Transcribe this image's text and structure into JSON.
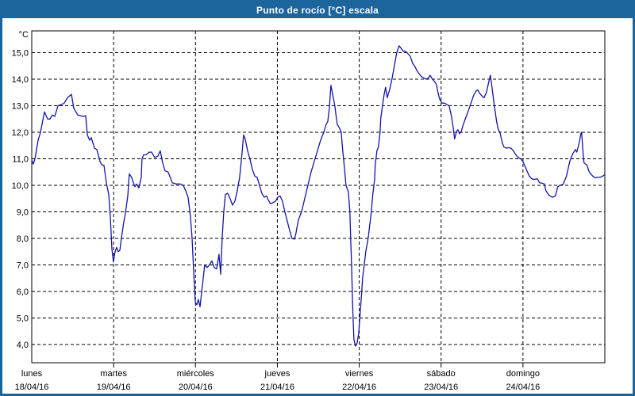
{
  "window": {
    "title": "Punto de rocío [°C] escala"
  },
  "colors": {
    "titlebar": "#1b649c",
    "window_border": "#1b649c",
    "background": "#ffffff",
    "plot_border": "#000000",
    "grid": "#000000",
    "line": "#1414aa",
    "title_text": "#ffffff",
    "label_text": "#000000"
  },
  "chart_data": {
    "type": "line",
    "title": "Punto de rocío [°C] escala",
    "ylabel": "°C",
    "xlabel": "",
    "grid": "dashed",
    "legend": "none",
    "ylim_ticks": [
      4.0,
      15.0
    ],
    "y_tick_values": [
      15,
      14,
      13,
      12,
      11,
      10,
      9,
      8,
      7,
      6,
      5,
      4
    ],
    "y_tick_labels": [
      "15,0",
      "14,0",
      "13,0",
      "12,0",
      "11,0",
      "10,0",
      "9,0",
      "8,0",
      "7,0",
      "6,0",
      "5,0",
      "4,0"
    ],
    "x_days": [
      {
        "day": "lunes",
        "date": "18/04/16"
      },
      {
        "day": "martes",
        "date": "19/04/16"
      },
      {
        "day": "miércoles",
        "date": "20/04/16"
      },
      {
        "day": "jueves",
        "date": "21/04/16"
      },
      {
        "day": "viernes",
        "date": "22/04/16"
      },
      {
        "day": "sábado",
        "date": "23/04/16"
      },
      {
        "day": "domingo",
        "date": "24/04/16"
      }
    ],
    "series": [
      {
        "name": "punto de rocío [°C]",
        "color": "#1414aa",
        "x_unit": "days from lunes 18/04/16 00:00",
        "points": [
          [
            0,
            10.95
          ],
          [
            0.019,
            10.8
          ],
          [
            0.039,
            11.0
          ],
          [
            0.078,
            11.7
          ],
          [
            0.107,
            12.0
          ],
          [
            0.155,
            12.77
          ],
          [
            0.194,
            12.5
          ],
          [
            0.223,
            12.5
          ],
          [
            0.252,
            12.65
          ],
          [
            0.281,
            12.6
          ],
          [
            0.32,
            13.0
          ],
          [
            0.368,
            13.05
          ],
          [
            0.397,
            13.1
          ],
          [
            0.436,
            13.3
          ],
          [
            0.485,
            13.43
          ],
          [
            0.514,
            12.9
          ],
          [
            0.533,
            12.8
          ],
          [
            0.562,
            12.65
          ],
          [
            0.62,
            12.6
          ],
          [
            0.659,
            12.62
          ],
          [
            0.679,
            11.9
          ],
          [
            0.708,
            11.7
          ],
          [
            0.727,
            11.8
          ],
          [
            0.766,
            11.4
          ],
          [
            0.795,
            11.35
          ],
          [
            0.834,
            10.9
          ],
          [
            0.853,
            10.78
          ],
          [
            0.882,
            10.75
          ],
          [
            0.911,
            10.1
          ],
          [
            0.94,
            9.65
          ],
          [
            0.96,
            8.8
          ],
          [
            0.979,
            7.6
          ],
          [
            0.998,
            7.11
          ],
          [
            1.018,
            7.5
          ],
          [
            1.037,
            7.66
          ],
          [
            1.056,
            7.5
          ],
          [
            1.076,
            7.55
          ],
          [
            1.095,
            8.0
          ],
          [
            1.124,
            8.6
          ],
          [
            1.144,
            8.96
          ],
          [
            1.173,
            9.6
          ],
          [
            1.192,
            10.43
          ],
          [
            1.221,
            10.3
          ],
          [
            1.241,
            10.1
          ],
          [
            1.26,
            9.95
          ],
          [
            1.279,
            10.05
          ],
          [
            1.308,
            9.9
          ],
          [
            1.338,
            10.3
          ],
          [
            1.347,
            11.0
          ],
          [
            1.367,
            11.15
          ],
          [
            1.396,
            11.15
          ],
          [
            1.434,
            11.25
          ],
          [
            1.464,
            11.25
          ],
          [
            1.502,
            11.05
          ],
          [
            1.541,
            11.1
          ],
          [
            1.57,
            11.3
          ],
          [
            1.599,
            10.85
          ],
          [
            1.628,
            10.55
          ],
          [
            1.667,
            10.5
          ],
          [
            1.716,
            10.1
          ],
          [
            1.764,
            10.05
          ],
          [
            1.813,
            10.05
          ],
          [
            1.851,
            10.0
          ],
          [
            1.88,
            9.8
          ],
          [
            1.91,
            9.55
          ],
          [
            1.939,
            8.8
          ],
          [
            1.958,
            8.0
          ],
          [
            1.977,
            6.8
          ],
          [
            1.997,
            5.6
          ],
          [
            2.016,
            5.5
          ],
          [
            2.035,
            5.7
          ],
          [
            2.055,
            5.42
          ],
          [
            2.084,
            6.2
          ],
          [
            2.113,
            7.0
          ],
          [
            2.142,
            6.9
          ],
          [
            2.171,
            7.0
          ],
          [
            2.2,
            7.15
          ],
          [
            2.229,
            6.9
          ],
          [
            2.258,
            6.85
          ],
          [
            2.287,
            7.4
          ],
          [
            2.307,
            6.65
          ],
          [
            2.326,
            8.0
          ],
          [
            2.345,
            9.0
          ],
          [
            2.365,
            9.65
          ],
          [
            2.394,
            9.7
          ],
          [
            2.423,
            9.5
          ],
          [
            2.452,
            9.25
          ],
          [
            2.481,
            9.4
          ],
          [
            2.51,
            9.8
          ],
          [
            2.539,
            10.3
          ],
          [
            2.568,
            11.2
          ],
          [
            2.588,
            11.9
          ],
          [
            2.607,
            11.75
          ],
          [
            2.636,
            11.3
          ],
          [
            2.665,
            11.0
          ],
          [
            2.694,
            10.6
          ],
          [
            2.724,
            10.35
          ],
          [
            2.753,
            10.3
          ],
          [
            2.782,
            10.0
          ],
          [
            2.811,
            9.7
          ],
          [
            2.84,
            9.55
          ],
          [
            2.869,
            9.6
          ],
          [
            2.888,
            9.45
          ],
          [
            2.917,
            9.3
          ],
          [
            2.947,
            9.35
          ],
          [
            2.976,
            9.4
          ],
          [
            3.005,
            9.55
          ],
          [
            3.034,
            9.6
          ],
          [
            3.063,
            9.4
          ],
          [
            3.092,
            9.0
          ],
          [
            3.121,
            8.65
          ],
          [
            3.15,
            8.3
          ],
          [
            3.179,
            8.0
          ],
          [
            3.208,
            7.97
          ],
          [
            3.228,
            8.2
          ],
          [
            3.257,
            8.7
          ],
          [
            3.295,
            9.0
          ],
          [
            3.334,
            9.5
          ],
          [
            3.373,
            10.0
          ],
          [
            3.412,
            10.5
          ],
          [
            3.46,
            11.0
          ],
          [
            3.499,
            11.4
          ],
          [
            3.528,
            11.7
          ],
          [
            3.567,
            12.0
          ],
          [
            3.596,
            12.3
          ],
          [
            3.615,
            12.4
          ],
          [
            3.635,
            12.9
          ],
          [
            3.654,
            13.77
          ],
          [
            3.683,
            13.3
          ],
          [
            3.702,
            13.0
          ],
          [
            3.731,
            12.3
          ],
          [
            3.751,
            12.2
          ],
          [
            3.78,
            12.0
          ],
          [
            3.799,
            11.3
          ],
          [
            3.818,
            10.7
          ],
          [
            3.838,
            10.0
          ],
          [
            3.867,
            9.75
          ],
          [
            3.886,
            9.0
          ],
          [
            3.896,
            8.0
          ],
          [
            3.906,
            7.0
          ],
          [
            3.915,
            6.0
          ],
          [
            3.925,
            5.0
          ],
          [
            3.935,
            4.2
          ],
          [
            3.954,
            3.94
          ],
          [
            3.973,
            4.05
          ],
          [
            3.993,
            4.4
          ],
          [
            4.012,
            5.2
          ],
          [
            4.031,
            6.0
          ],
          [
            4.041,
            6.5
          ],
          [
            4.061,
            7.0
          ],
          [
            4.08,
            7.5
          ],
          [
            4.109,
            8.0
          ],
          [
            4.148,
            9.0
          ],
          [
            4.167,
            9.7
          ],
          [
            4.187,
            10.2
          ],
          [
            4.196,
            10.8
          ],
          [
            4.216,
            11.3
          ],
          [
            4.235,
            11.45
          ],
          [
            4.254,
            12.0
          ],
          [
            4.264,
            12.55
          ],
          [
            4.284,
            13.0
          ],
          [
            4.303,
            13.4
          ],
          [
            4.322,
            13.7
          ],
          [
            4.342,
            13.3
          ],
          [
            4.371,
            13.6
          ],
          [
            4.4,
            14.0
          ],
          [
            4.429,
            14.5
          ],
          [
            4.458,
            15.0
          ],
          [
            4.487,
            15.26
          ],
          [
            4.516,
            15.15
          ],
          [
            4.536,
            15.05
          ],
          [
            4.555,
            15.07
          ],
          [
            4.584,
            15.0
          ],
          [
            4.623,
            14.87
          ],
          [
            4.652,
            14.6
          ],
          [
            4.681,
            14.47
          ],
          [
            4.72,
            14.25
          ],
          [
            4.759,
            14.1
          ],
          [
            4.788,
            14.05
          ],
          [
            4.817,
            14.0
          ],
          [
            4.846,
            14.05
          ],
          [
            4.865,
            14.15
          ],
          [
            4.894,
            14.0
          ],
          [
            4.923,
            13.9
          ],
          [
            4.943,
            13.8
          ],
          [
            4.962,
            13.5
          ],
          [
            4.982,
            13.25
          ],
          [
            5.011,
            13.1
          ],
          [
            5.04,
            13.1
          ],
          [
            5.069,
            13.05
          ],
          [
            5.098,
            13.0
          ],
          [
            5.127,
            12.6
          ],
          [
            5.146,
            12.2
          ],
          [
            5.166,
            11.75
          ],
          [
            5.185,
            12.0
          ],
          [
            5.205,
            12.1
          ],
          [
            5.224,
            11.95
          ],
          [
            5.243,
            12.0
          ],
          [
            5.272,
            12.3
          ],
          [
            5.301,
            12.55
          ],
          [
            5.331,
            12.8
          ],
          [
            5.36,
            13.05
          ],
          [
            5.398,
            13.4
          ],
          [
            5.427,
            13.55
          ],
          [
            5.447,
            13.6
          ],
          [
            5.476,
            13.45
          ],
          [
            5.505,
            13.35
          ],
          [
            5.524,
            13.3
          ],
          [
            5.553,
            13.5
          ],
          [
            5.583,
            13.9
          ],
          [
            5.602,
            14.15
          ],
          [
            5.621,
            13.7
          ],
          [
            5.65,
            13.0
          ],
          [
            5.679,
            12.4
          ],
          [
            5.699,
            12.1
          ],
          [
            5.718,
            12.0
          ],
          [
            5.747,
            11.6
          ],
          [
            5.767,
            11.45
          ],
          [
            5.796,
            11.4
          ],
          [
            5.825,
            11.42
          ],
          [
            5.854,
            11.4
          ],
          [
            5.883,
            11.3
          ],
          [
            5.912,
            11.15
          ],
          [
            5.941,
            11.05
          ],
          [
            5.97,
            11.0
          ],
          [
            5.999,
            10.9
          ],
          [
            6.028,
            10.7
          ],
          [
            6.048,
            10.55
          ],
          [
            6.077,
            10.35
          ],
          [
            6.106,
            10.25
          ],
          [
            6.135,
            10.22
          ],
          [
            6.174,
            10.25
          ],
          [
            6.203,
            10.1
          ],
          [
            6.232,
            10.08
          ],
          [
            6.261,
            10.05
          ],
          [
            6.28,
            9.8
          ],
          [
            6.319,
            9.62
          ],
          [
            6.358,
            9.55
          ],
          [
            6.396,
            9.6
          ],
          [
            6.425,
            9.95
          ],
          [
            6.455,
            10.0
          ],
          [
            6.493,
            10.05
          ],
          [
            6.532,
            10.35
          ],
          [
            6.571,
            10.9
          ],
          [
            6.61,
            11.2
          ],
          [
            6.639,
            11.35
          ],
          [
            6.658,
            11.25
          ],
          [
            6.687,
            11.6
          ],
          [
            6.707,
            11.95
          ],
          [
            6.716,
            12.0
          ],
          [
            6.736,
            11.15
          ],
          [
            6.745,
            10.85
          ],
          [
            6.765,
            10.8
          ],
          [
            6.784,
            10.75
          ],
          [
            6.803,
            10.55
          ],
          [
            6.823,
            10.45
          ],
          [
            6.852,
            10.35
          ],
          [
            6.881,
            10.28
          ],
          [
            6.91,
            10.3
          ],
          [
            6.939,
            10.3
          ],
          [
            6.968,
            10.33
          ],
          [
            6.997,
            10.4
          ]
        ]
      }
    ]
  }
}
